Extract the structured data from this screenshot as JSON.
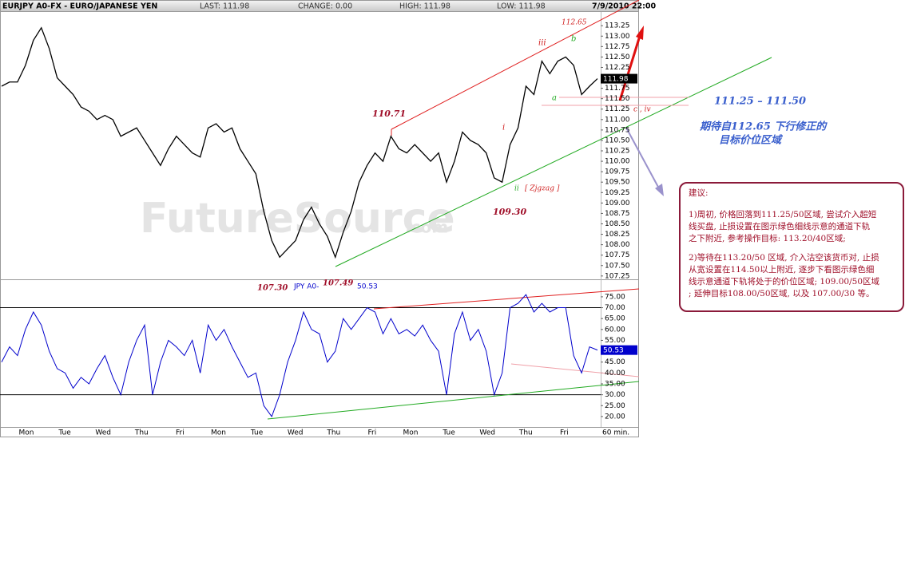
{
  "header": {
    "symbol": "EURJPY A0-FX - EURO/JAPANESE YEN",
    "last": "LAST: 111.98",
    "change": "CHANGE: 0.00",
    "high": "HIGH: 111.98",
    "low": "LOW: 111.98",
    "datetime": "7/9/2010 22:00"
  },
  "watermark": {
    "name": "FutureSource",
    "suffix": ".com"
  },
  "chart_data": [
    {
      "type": "line",
      "color": "#000000",
      "values": [
        111.8,
        111.9,
        111.9,
        112.3,
        112.9,
        113.2,
        112.7,
        112.0,
        111.8,
        111.6,
        111.3,
        111.2,
        111.0,
        111.1,
        111.0,
        110.6,
        110.7,
        110.8,
        110.5,
        110.2,
        109.9,
        110.3,
        110.6,
        110.4,
        110.2,
        110.1,
        110.8,
        110.9,
        110.7,
        110.8,
        110.3,
        110.0,
        109.7,
        108.8,
        108.1,
        107.7,
        107.9,
        108.1,
        108.6,
        108.9,
        108.5,
        108.2,
        107.7,
        108.3,
        108.8,
        109.5,
        109.9,
        110.2,
        110.0,
        110.6,
        110.3,
        110.2,
        110.4,
        110.2,
        110.0,
        110.2,
        109.5,
        110.0,
        110.7,
        110.5,
        110.4,
        110.2,
        109.6,
        109.5,
        110.4,
        110.8,
        111.8,
        111.6,
        112.4,
        112.1,
        112.4,
        112.5,
        112.3,
        111.6,
        111.8,
        111.98
      ],
      "ylim": [
        107.17,
        113.56
      ],
      "yticks": [
        113.25,
        {
          "value": 113,
          "label": "113.00"
        },
        112.75,
        {
          "value": 112.5,
          "label": "112.50"
        },
        112.25,
        {
          "value": 112,
          "label": "112.00"
        },
        111.75,
        {
          "value": 111.5,
          "label": "111.50"
        },
        111.25,
        {
          "value": 111,
          "label": "111.00"
        },
        110.75,
        {
          "value": 110.5,
          "label": "110.50"
        },
        110.25,
        {
          "value": 110,
          "label": "110.00"
        },
        109.75,
        {
          "value": 109.5,
          "label": "109.50"
        },
        109.25,
        {
          "value": 109,
          "label": "109.00"
        },
        108.75,
        {
          "value": 108.5,
          "label": "108.50"
        },
        108.25,
        {
          "value": 108,
          "label": "108.00"
        },
        107.75,
        {
          "value": 107.5,
          "label": "107.50"
        },
        107.25
      ]
    },
    {
      "type": "line",
      "color": "#0000cc",
      "name": "JPY A0-",
      "values": [
        45,
        52,
        48,
        60,
        68,
        62,
        50,
        42,
        40,
        33,
        38,
        35,
        42,
        48,
        38,
        30,
        45,
        55,
        62,
        30,
        45,
        55,
        52,
        48,
        55,
        40,
        62,
        55,
        60,
        52,
        45,
        38,
        40,
        25,
        20,
        30,
        45,
        55,
        68,
        60,
        58,
        45,
        50,
        65,
        60,
        65,
        70,
        68,
        58,
        65,
        58,
        60,
        57,
        62,
        55,
        50,
        30,
        58,
        68,
        55,
        60,
        50,
        30,
        40,
        70,
        72,
        76,
        68,
        72,
        68,
        70,
        70,
        48,
        40,
        52,
        50.53
      ],
      "ylim": [
        15.2,
        82.3
      ],
      "yticks": [
        {
          "value": 75,
          "label": "75.00"
        },
        {
          "value": 70,
          "label": "70.00"
        },
        {
          "value": 65,
          "label": "65.00"
        },
        {
          "value": 60,
          "label": "60.00"
        },
        {
          "value": 55,
          "label": "55.00"
        },
        {
          "value": 50,
          "label": "50.00"
        },
        {
          "value": 45,
          "label": "45.00"
        },
        {
          "value": 40,
          "label": "40.00"
        },
        {
          "value": 35,
          "label": "35.00"
        },
        {
          "value": 30,
          "label": "30.00"
        },
        {
          "value": 25,
          "label": "25.00"
        },
        {
          "value": 20,
          "label": "20.00"
        }
      ],
      "hlines": [
        70,
        30
      ],
      "x_labels": [
        "Mon",
        "Tue",
        "Wed",
        "Thu",
        "Fri",
        "Mon",
        "Tue",
        "Wed",
        "Thu",
        "Fri",
        "Mon",
        "Tue",
        "Wed",
        "Thu",
        "Fri",
        "60 min."
      ]
    }
  ],
  "annotations": {
    "peak": "112.65",
    "wave_iii": "iii",
    "wave_b": "b",
    "wave_a": "a",
    "level_110_71": "110.71",
    "wave_i": "i",
    "wave_c_iv": "c , iv",
    "wave_ii": "ii",
    "zigzag": "[ Zjgzag ]",
    "level_109_30": "109.30",
    "level_107_30": "107.30",
    "level_107_49": "107.49",
    "target_range": "111.25 – 111.50",
    "target_line1": "期待自112.65 下行修正的",
    "target_line2": "目标价位区域"
  },
  "note": {
    "title": "建议:",
    "paragraphs": [
      [
        "1)周初, 价格回落到111.25/50区域, 尝试介入超短",
        "线买盘, 止损设置在图示绿色细线示意的通道下轨",
        "之下附近, 参考操作目标: 113.20/40区域;"
      ],
      [
        "2)等待在113.20/50 区域, 介入沽空该货币对, 止损",
        "从宽设置在114.50以上附近, 逐步下看图示绿色细",
        "线示意通道下轨将处于的价位区域; 109.00/50区域",
        "; 延伸目标108.00/50区域, 以及 107.00/30 等。"
      ]
    ]
  }
}
